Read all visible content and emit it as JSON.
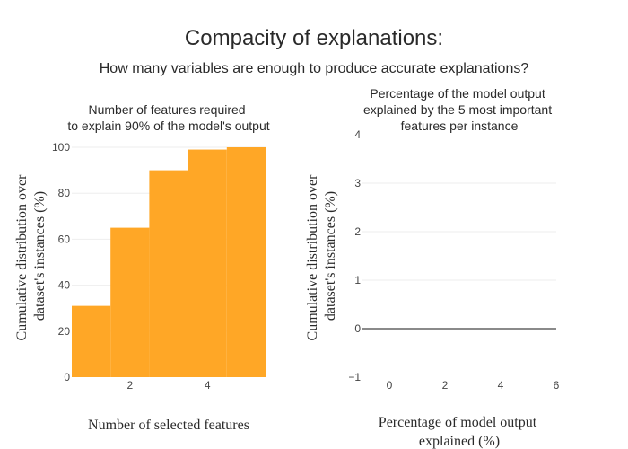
{
  "title": "Compacity of explanations:",
  "subtitle": "How many variables are enough to produce accurate explanations?",
  "colors": {
    "bar": "#FFA726",
    "grid": "#eeeeee",
    "zeroline": "#444444",
    "text": "#444444"
  },
  "chart_data": [
    {
      "type": "bar",
      "title_lines": [
        "Number of features required",
        "to explain 90% of the model's output"
      ],
      "xlabel": "Number of selected features",
      "ylabel_lines": [
        "Cumulative distribution over",
        "dataset's instances (%)"
      ],
      "x": [
        1,
        2,
        3,
        4,
        5
      ],
      "values": [
        31,
        65,
        90,
        99,
        100
      ],
      "xlim": [
        0.5,
        5.5
      ],
      "ylim": [
        0,
        100
      ],
      "xticks": [
        2,
        4
      ],
      "yticks": [
        0,
        20,
        40,
        60,
        80,
        100
      ],
      "grid": true
    },
    {
      "type": "line",
      "title_lines": [
        "Percentage of the model output",
        "explained by the 5 most important",
        "features per instance"
      ],
      "xlabel_lines": [
        "Percentage of model output",
        "explained (%)"
      ],
      "ylabel_lines": [
        "Cumulative distribution over",
        "dataset's instances (%)"
      ],
      "series": [],
      "xlim": [
        -1,
        6
      ],
      "ylim": [
        -1,
        4
      ],
      "xticks": [
        0,
        2,
        4,
        6
      ],
      "yticks": [
        -1,
        0,
        1,
        2,
        3,
        4
      ],
      "grid": true
    }
  ]
}
